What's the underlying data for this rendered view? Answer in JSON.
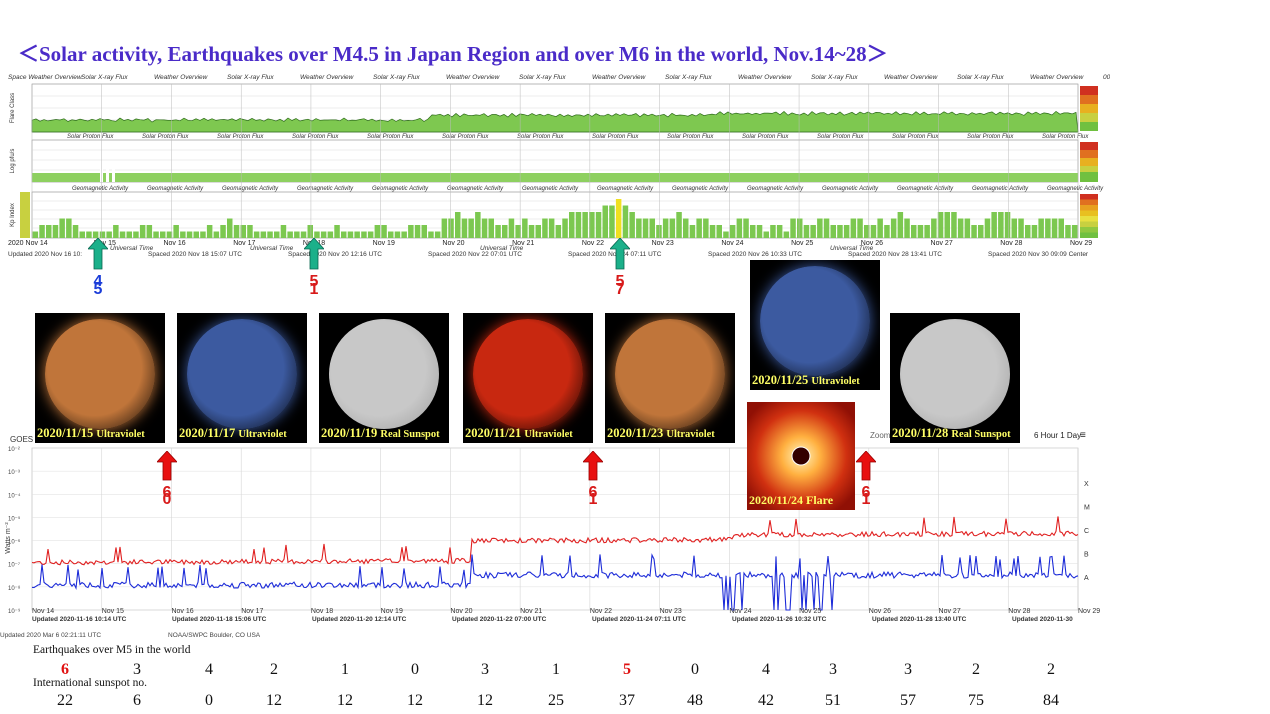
{
  "title": "＜Solar activity, Earthquakes over M4.5 in Japan Region and over M6 in the world,   Nov.14~28＞",
  "swpc": {
    "overview_labels": [
      "Space Weather Overview",
      "Solar X-ray Flux",
      "Weather Overview",
      "Solar X-ray Flux",
      "Weather Overview",
      "Solar X-ray Flux",
      "Weather Overview",
      "Solar X-ray Flux",
      "Weather Overview",
      "Solar X-ray Flux",
      "Weather Overview",
      "Solar X-ray Flux",
      "Weather Overview",
      "Solar X-ray Flux",
      "Weather Overview",
      "00 UTC"
    ],
    "proton_labels": [
      "Solar Proton Flux",
      "Solar Proton Flux",
      "Solar Proton Flux",
      "Solar Proton Flux",
      "Solar Proton Flux",
      "Solar Proton Flux",
      "Solar Proton Flux",
      "Solar Proton Flux",
      "Solar Proton Flux",
      "Solar Proton Flux",
      "Solar Proton Flux",
      "Solar Proton Flux",
      "Solar Proton Flux",
      "Solar Proton Flux"
    ],
    "geo_labels": [
      "Geomagnetic Activity",
      "Geomagnetic Activity",
      "Geomagnetic Activity",
      "Geomagnetic Activity",
      "Geomagnetic Activity",
      "Geomagnetic Activity",
      "Geomagnetic Activity",
      "Geomagnetic Activity",
      "Geomagnetic Activity",
      "Geomagnetic Activity",
      "Geomagnetic Activity",
      "Geomagnetic Activity",
      "Geomagnetic Activity",
      "Geomagnetic Activity"
    ],
    "ylabels": [
      "Flare Class",
      "Log pfu/s",
      "Kp Index"
    ],
    "date_ticks": [
      "2020 Nov 14",
      "Nov 15",
      "Nov 16",
      "Nov 17",
      "Nov 18",
      "Nov 19",
      "Nov 20",
      "Nov 21",
      "Nov 22",
      "Nov 23",
      "Nov 24",
      "Nov 25",
      "Nov 26",
      "Nov 27",
      "Nov 28",
      "Nov 29"
    ],
    "universal_time": "Universal Time",
    "footer": [
      "Updated 2020 Nov 16 10:",
      "Spaced 2020 Nov 18 15:07 UTC",
      "Spaced 2020 Nov 20 12:16 UTC",
      "Spaced 2020 Nov 22 07:01 UTC",
      "Spaced 2020 Nov 24 07:11 UTC",
      "Spaced 2020 Nov 26 10:33 UTC",
      "Spaced 2020 Nov 28 13:41 UTC",
      "Spaced 2020 Nov 30 09:09 Center"
    ],
    "kp_bars": [
      1,
      2,
      2,
      2,
      3,
      3,
      2,
      1,
      1,
      1,
      1,
      1,
      2,
      1,
      1,
      1,
      2,
      2,
      1,
      1,
      1,
      2,
      1,
      1,
      1,
      1,
      2,
      1,
      2,
      3,
      2,
      2,
      2,
      1,
      1,
      1,
      1,
      2,
      1,
      1,
      1,
      2,
      1,
      1,
      1,
      2,
      1,
      1,
      1,
      1,
      1,
      2,
      2,
      1,
      1,
      1,
      2,
      2,
      2,
      1,
      1,
      3,
      3,
      4,
      3,
      3,
      4,
      3,
      3,
      2,
      2,
      3,
      2,
      3,
      2,
      2,
      3,
      3,
      2,
      3,
      4,
      4,
      4,
      4,
      4,
      5,
      5,
      6,
      5,
      4,
      3,
      3,
      3,
      2,
      3,
      3,
      4,
      3,
      2,
      3,
      3,
      2,
      2,
      1,
      2,
      3,
      3,
      2,
      2,
      1,
      2,
      2,
      1,
      3,
      3,
      2,
      2,
      3,
      3,
      2,
      2,
      2,
      3,
      3,
      2,
      2,
      3,
      2,
      3,
      4,
      3,
      2,
      2,
      2,
      3,
      4,
      4,
      4,
      3,
      3,
      2,
      2,
      3,
      4,
      4,
      4,
      3,
      3,
      2,
      2,
      3,
      3,
      3,
      3,
      2,
      2
    ]
  },
  "earthquake_arrows": [
    {
      "digits": [
        "4",
        "5"
      ],
      "color": "#1a3cd8"
    },
    {
      "digits": [
        "5",
        "1"
      ],
      "color": "#d81a1a"
    },
    {
      "digits": [
        "5",
        "7"
      ],
      "color": "#d81a1a"
    }
  ],
  "world_arrows": [
    {
      "digits": [
        "6",
        "0"
      ]
    },
    {
      "digits": [
        "6",
        "1"
      ]
    },
    {
      "digits": [
        "6",
        "1"
      ]
    }
  ],
  "sun_images": [
    {
      "date": "2020/11/15",
      "kind": "Ultraviolet",
      "color": "#c0753a"
    },
    {
      "date": "2020/11/17",
      "kind": "Ultraviolet",
      "color": "#3c5aa0"
    },
    {
      "date": "2020/11/19",
      "kind": "Real Sunspot",
      "color": "#c8c8c8"
    },
    {
      "date": "2020/11/21",
      "kind": "Ultraviolet",
      "color": "#c82810"
    },
    {
      "date": "2020/11/23",
      "kind": "Ultraviolet",
      "color": "#c0753a"
    },
    {
      "date": "2020/11/25",
      "kind": "Ultraviolet",
      "color": "#3c5aa0"
    },
    {
      "date": "2020/11/28",
      "kind": "Real Sunspot",
      "color": "#c8c8c8"
    }
  ],
  "flare_image": {
    "caption": "2020/11/24  Flare"
  },
  "goes": {
    "label": "GOES",
    "zoom": "Zoom",
    "zoom_options": "6 Hour  1 Day",
    "ylabel": "Watts m⁻²",
    "flare_classes": [
      "X",
      "M",
      "C",
      "B",
      "A"
    ],
    "yticks": [
      "10⁻²",
      "10⁻³",
      "10⁻⁴",
      "10⁻⁵",
      "10⁻⁶",
      "10⁻⁷",
      "10⁻⁸",
      "10⁻⁹"
    ],
    "date_ticks": [
      "Nov 14",
      "Nov 15",
      "Nov 16",
      "Nov 17",
      "Nov 18",
      "Nov 19",
      "Nov 20",
      "Nov 21",
      "Nov 22",
      "Nov 23",
      "Nov 24",
      "Nov 25",
      "Nov 26",
      "Nov 27",
      "Nov 28",
      "Nov 29"
    ],
    "footer": [
      "Updated 2020-11-16 10:14 UTC",
      "Updated 2020-11-18 15:06 UTC",
      "Updated 2020-11-20 12:14 UTC",
      "Updated 2020-11-22 07:00 UTC",
      "Updated 2020-11-24 07:11 UTC",
      "Updated 2020-11-26 10:32 UTC",
      "Updated 2020-11-28 13:40 UTC",
      "Updated 2020-11-30"
    ],
    "bottom_left": "Updated 2020 Mar  6 02:21:11 UTC",
    "bottom_mid": "NOAA/SWPC Boulder, CO USA"
  },
  "table": {
    "eq_label": "Earthquakes over M5 in the world",
    "eq_values": [
      "6",
      "3",
      "4",
      "2",
      "1",
      "0",
      "3",
      "1",
      "5",
      "0",
      "4",
      "3",
      "3",
      "2",
      "2"
    ],
    "eq_highlight": [
      0,
      8
    ],
    "sunspot_label": "International sunspot no.",
    "sunspot_values": [
      "22",
      "6",
      "0",
      "12",
      "12",
      "12",
      "12",
      "25",
      "37",
      "48",
      "42",
      "51",
      "57",
      "75",
      "84"
    ]
  },
  "chart_data": {
    "type": "table",
    "title": "＜Solar activity, Earthquakes over M4.5 in Japan Region and over M6 in the world,   Nov.14~28＞",
    "categories": [
      "Nov 14",
      "Nov 15",
      "Nov 16",
      "Nov 17",
      "Nov 18",
      "Nov 19",
      "Nov 20",
      "Nov 21",
      "Nov 22",
      "Nov 23",
      "Nov 24",
      "Nov 25",
      "Nov 26",
      "Nov 27",
      "Nov 28"
    ],
    "series": [
      {
        "name": "Earthquakes over M5 in the world",
        "values": [
          6,
          3,
          4,
          2,
          1,
          0,
          3,
          1,
          5,
          0,
          4,
          3,
          3,
          2,
          2
        ]
      },
      {
        "name": "International sunspot no.",
        "values": [
          22,
          6,
          0,
          12,
          12,
          12,
          12,
          25,
          37,
          48,
          42,
          51,
          57,
          75,
          84
        ]
      }
    ]
  }
}
